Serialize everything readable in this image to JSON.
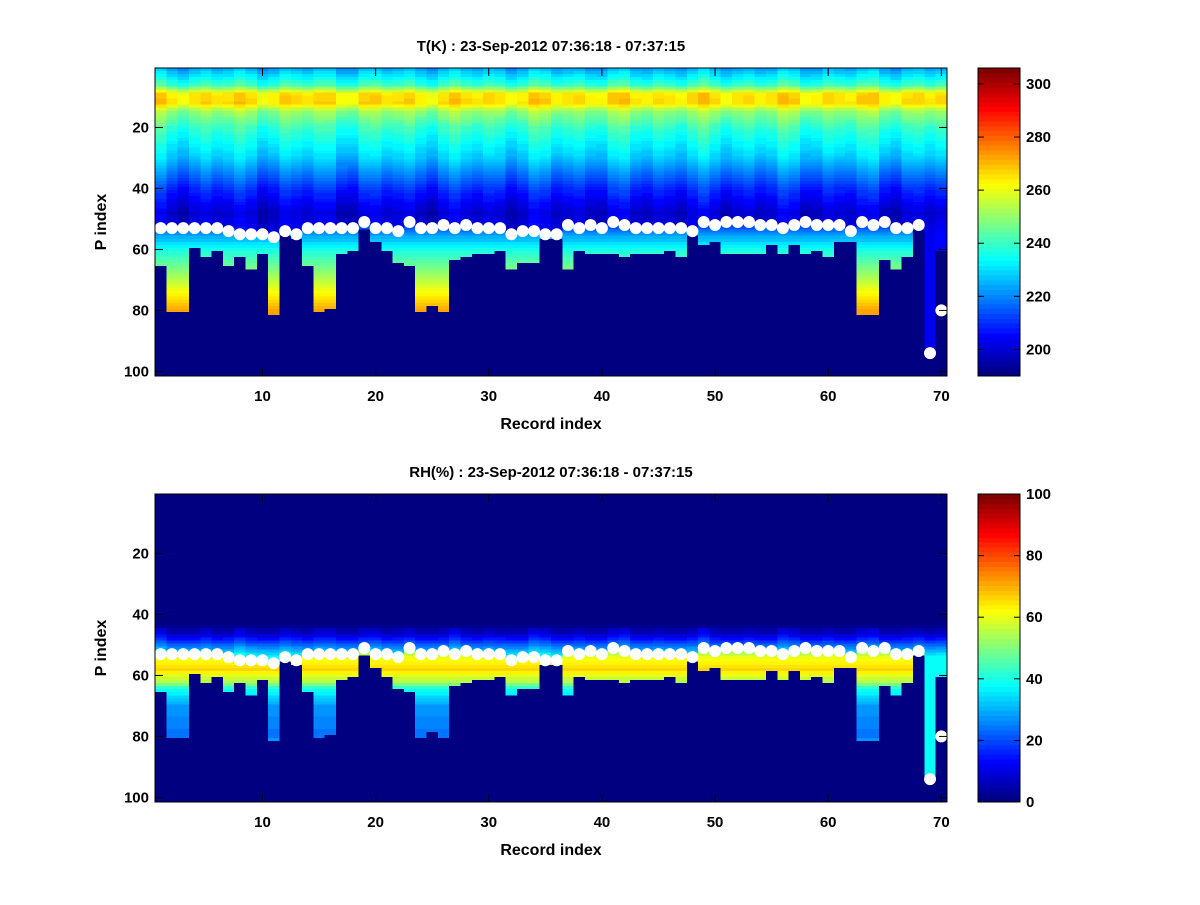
{
  "chart_data": [
    {
      "type": "heatmap",
      "title": "T(K) : 23-Sep-2012 07:36:18 - 07:37:15",
      "xlabel": "Record index",
      "ylabel": "P index",
      "xlim": [
        0.5,
        70.5
      ],
      "ylim": [
        0.5,
        101.5
      ],
      "y_reversed": true,
      "xticks": [
        10,
        20,
        30,
        40,
        50,
        60,
        70
      ],
      "yticks": [
        20,
        40,
        60,
        80,
        100
      ],
      "colorbar": {
        "range": [
          190,
          306
        ],
        "ticks": [
          200,
          220,
          240,
          260,
          280,
          300
        ],
        "colormap": "jet"
      },
      "profile_above_marker": [
        [
          1,
          225
        ],
        [
          6,
          240
        ],
        [
          9,
          265
        ],
        [
          12,
          266
        ],
        [
          15,
          250
        ],
        [
          20,
          240
        ],
        [
          30,
          228
        ],
        [
          40,
          210
        ],
        [
          48,
          200
        ],
        [
          56,
          205
        ]
      ],
      "profile_below_marker": [
        [
          50,
          205
        ],
        [
          56,
          225
        ],
        [
          60,
          236
        ],
        [
          65,
          245
        ],
        [
          72,
          258
        ],
        [
          80,
          272
        ],
        [
          94,
          290
        ]
      ]
    },
    {
      "type": "heatmap",
      "title": "RH(%) : 23-Sep-2012 07:36:18 - 07:37:15",
      "xlabel": "Record index",
      "ylabel": "P index",
      "xlim": [
        0.5,
        70.5
      ],
      "ylim": [
        0.5,
        101.5
      ],
      "y_reversed": true,
      "xticks": [
        10,
        20,
        30,
        40,
        50,
        60,
        70
      ],
      "yticks": [
        20,
        40,
        60,
        80,
        100
      ],
      "colorbar": {
        "range": [
          0,
          100
        ],
        "ticks": [
          0,
          20,
          40,
          60,
          80,
          100
        ],
        "colormap": "jet"
      },
      "profile_above_marker": [
        [
          1,
          0
        ],
        [
          42,
          0
        ],
        [
          46,
          6
        ],
        [
          50,
          22
        ],
        [
          54,
          38
        ]
      ],
      "profile_below_marker": [
        [
          50,
          45
        ],
        [
          54,
          60
        ],
        [
          58,
          66
        ],
        [
          62,
          55
        ],
        [
          65,
          38
        ],
        [
          70,
          28
        ],
        [
          80,
          24
        ],
        [
          94,
          60
        ]
      ]
    }
  ],
  "records": [
    1,
    2,
    3,
    4,
    5,
    6,
    7,
    8,
    9,
    10,
    11,
    12,
    13,
    14,
    15,
    16,
    17,
    18,
    19,
    20,
    21,
    22,
    23,
    24,
    25,
    26,
    27,
    28,
    29,
    30,
    31,
    32,
    33,
    34,
    35,
    36,
    37,
    38,
    39,
    40,
    41,
    42,
    43,
    44,
    45,
    46,
    47,
    48,
    49,
    50,
    51,
    52,
    53,
    54,
    55,
    56,
    57,
    58,
    59,
    60,
    61,
    62,
    63,
    64,
    65,
    66,
    67,
    68,
    69,
    70
  ],
  "marker_p_index": [
    53,
    53,
    53,
    53,
    53,
    53,
    54,
    55,
    55,
    55,
    56,
    54,
    55,
    53,
    53,
    53,
    53,
    53,
    51,
    53,
    53,
    54,
    51,
    53,
    53,
    52,
    53,
    52,
    53,
    53,
    53,
    55,
    54,
    54,
    55,
    55,
    52,
    53,
    52,
    53,
    51,
    52,
    53,
    53,
    53,
    53,
    53,
    54,
    51,
    52,
    51,
    51,
    51,
    52,
    52,
    53,
    52,
    51,
    52,
    52,
    52,
    54,
    51,
    52,
    51,
    53,
    53,
    52,
    94,
    80
  ],
  "data_bottom_p_index": [
    65,
    80,
    80,
    59,
    62,
    60,
    65,
    62,
    66,
    61,
    81,
    55,
    56,
    65,
    80,
    79,
    61,
    60,
    53,
    57,
    60,
    64,
    65,
    80,
    78,
    80,
    63,
    62,
    61,
    61,
    60,
    66,
    64,
    64,
    56,
    56,
    66,
    60,
    61,
    61,
    61,
    62,
    61,
    61,
    61,
    60,
    62,
    55,
    58,
    57,
    61,
    61,
    61,
    61,
    58,
    61,
    58,
    61,
    60,
    62,
    57,
    57,
    81,
    81,
    63,
    66,
    62,
    53,
    94,
    60
  ]
}
